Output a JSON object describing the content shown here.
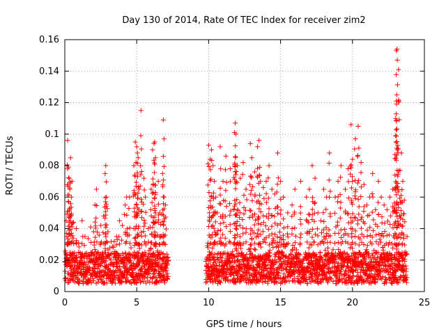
{
  "chart_data": {
    "type": "scatter",
    "title": "Day 130 of 2014, Rate Of TEC Index for receiver zim2",
    "xlabel": "GPS time / hours",
    "ylabel": "ROTI / TECUs",
    "xlim": [
      0,
      25
    ],
    "ylim": [
      0,
      0.16
    ],
    "xticks": [
      "0",
      "5",
      "10",
      "15",
      "20",
      "25"
    ],
    "yticks": [
      "0",
      "0.02",
      "0.04",
      "0.06",
      "0.08",
      "0.1",
      "0.12",
      "0.14",
      "0.16"
    ],
    "grid": true,
    "marker": "+",
    "color": "#ff0000",
    "data_gap_hours": [
      7.2,
      9.8
    ],
    "baseline_range": [
      0.005,
      0.025
    ],
    "series": [
      {
        "x": [
          0.1,
          0.2,
          0.25,
          0.3,
          0.35,
          0.4,
          0.45,
          0.5,
          0.6,
          0.8,
          1.2,
          1.4,
          1.8,
          2.0,
          2.1,
          2.2,
          2.5,
          2.7,
          2.8,
          2.85,
          2.9,
          3.0,
          3.4,
          3.6,
          3.8,
          4.0,
          4.2,
          4.3,
          4.5,
          4.8,
          4.9,
          5.0,
          5.05,
          5.1,
          5.3,
          5.5,
          5.6,
          5.8,
          6.0,
          6.1,
          6.2,
          6.25,
          6.3,
          6.5,
          6.6,
          6.8,
          6.85,
          6.9,
          7.0,
          10.0,
          10.1,
          10.2,
          10.3,
          10.4,
          10.5,
          10.6,
          10.8,
          11.0,
          11.2,
          11.5,
          11.8,
          11.85,
          11.9,
          12.0,
          12.2,
          12.4,
          12.6,
          12.9,
          13.0,
          13.2,
          13.4,
          13.5,
          13.6,
          13.8,
          14.0,
          14.2,
          14.4,
          14.6,
          14.8,
          15.0,
          15.2,
          15.5,
          15.8,
          16.0,
          16.4,
          16.8,
          17.0,
          17.2,
          17.4,
          17.6,
          17.8,
          18.0,
          18.2,
          18.4,
          18.8,
          19.0,
          19.2,
          19.5,
          19.7,
          19.9,
          20.0,
          20.2,
          20.4,
          20.6,
          20.8,
          21.0,
          21.2,
          21.4,
          21.6,
          21.8,
          22.0,
          22.2,
          22.4,
          22.6,
          22.8,
          22.95,
          23.0,
          23.05,
          23.1,
          23.2,
          23.3,
          23.4,
          23.5,
          23.6
        ],
        "y": [
          0.045,
          0.096,
          0.079,
          0.072,
          0.065,
          0.085,
          0.06,
          0.07,
          0.044,
          0.04,
          0.045,
          0.035,
          0.041,
          0.038,
          0.055,
          0.065,
          0.042,
          0.048,
          0.075,
          0.08,
          0.06,
          0.038,
          0.022,
          0.035,
          0.045,
          0.042,
          0.055,
          0.06,
          0.06,
          0.08,
          0.095,
          0.092,
          0.088,
          0.085,
          0.115,
          0.072,
          0.06,
          0.04,
          0.065,
          0.09,
          0.094,
          0.095,
          0.085,
          0.07,
          0.05,
          0.075,
          0.109,
          0.06,
          0.055,
          0.093,
          0.084,
          0.09,
          0.08,
          0.07,
          0.06,
          0.05,
          0.092,
          0.07,
          0.086,
          0.078,
          0.101,
          0.107,
          0.1,
          0.08,
          0.072,
          0.082,
          0.065,
          0.094,
          0.085,
          0.076,
          0.092,
          0.096,
          0.07,
          0.066,
          0.07,
          0.08,
          0.065,
          0.062,
          0.088,
          0.07,
          0.06,
          0.05,
          0.055,
          0.065,
          0.07,
          0.06,
          0.065,
          0.08,
          0.072,
          0.05,
          0.045,
          0.065,
          0.06,
          0.088,
          0.06,
          0.07,
          0.08,
          0.065,
          0.078,
          0.106,
          0.084,
          0.097,
          0.105,
          0.082,
          0.068,
          0.055,
          0.06,
          0.075,
          0.052,
          0.07,
          0.06,
          0.055,
          0.052,
          0.06,
          0.065,
          0.087,
          0.099,
          0.153,
          0.154,
          0.141,
          0.077,
          0.088,
          0.07,
          0.058
        ]
      }
    ]
  }
}
